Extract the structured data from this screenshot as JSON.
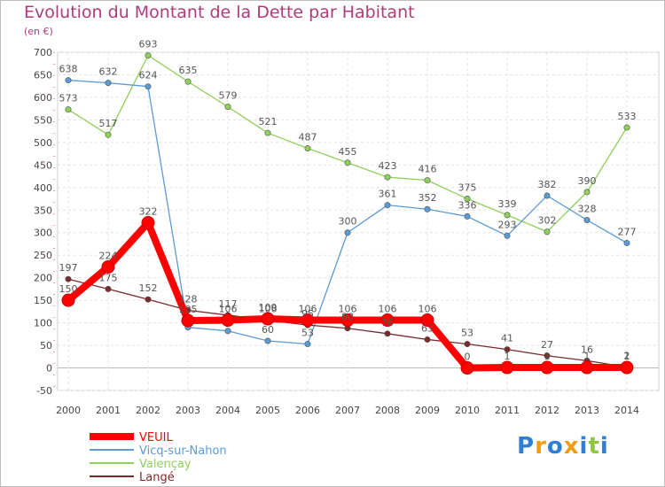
{
  "chart_data": {
    "type": "line",
    "title": "Evolution du Montant de la Dette par Habitant",
    "subtitle": "(en €)",
    "xlabel": "",
    "ylabel": "",
    "ylim": [
      -50,
      700
    ],
    "yticks": [
      -50,
      0,
      50,
      100,
      150,
      200,
      250,
      300,
      350,
      400,
      450,
      500,
      550,
      600,
      650,
      700
    ],
    "x": [
      "2000",
      "2001",
      "2002",
      "2003",
      "2004",
      "2005",
      "2006",
      "2007",
      "2008",
      "2009",
      "2010",
      "2011",
      "2012",
      "2013",
      "2014"
    ],
    "grid": true,
    "legend_position": "bottom-left",
    "series": [
      {
        "name": "Valençay",
        "color": "#8ed05a",
        "values": [
          573,
          517,
          693,
          635,
          579,
          521,
          487,
          455,
          423,
          416,
          375,
          339,
          302,
          390,
          533
        ]
      },
      {
        "name": "Vicq-sur-Nahon",
        "color": "#5b9bd5",
        "values": [
          638,
          632,
          624,
          90,
          82,
          60,
          53,
          300,
          361,
          352,
          336,
          293,
          382,
          328,
          277
        ]
      },
      {
        "name": "Langé",
        "color": "#7a2a2a",
        "values": [
          197,
          175,
          152,
          128,
          117,
          106,
          95,
          88,
          76,
          63,
          53,
          41,
          27,
          16,
          2
        ]
      },
      {
        "name": "VEUIL",
        "color": "#ff0000",
        "values": [
          150,
          224,
          322,
          105,
          106,
          109,
          106,
          106,
          106,
          106,
          0,
          1,
          1,
          1,
          1
        ]
      }
    ],
    "data_labels": {
      "Valençay": [
        "573",
        "517",
        "693",
        "635",
        "579",
        "521",
        "487",
        "455",
        "423",
        "416",
        "375",
        "339",
        "302",
        "390",
        "533"
      ],
      "Vicq-sur-Nahon": [
        "638",
        "632",
        "624",
        "",
        "",
        "60",
        "53",
        "300",
        "361",
        "352",
        "336",
        "293",
        "382",
        "328",
        "277"
      ],
      "Langé": [
        "197",
        "175",
        "152",
        "128",
        "117",
        "106",
        "95",
        "88",
        "76",
        "63",
        "53",
        "41",
        "27",
        "16",
        "2"
      ],
      "VEUIL": [
        "150",
        "224",
        "322",
        "105",
        "106",
        "109",
        "106",
        "106",
        "106",
        "106",
        "0",
        "1",
        "1",
        "1",
        "1"
      ]
    },
    "legend": [
      {
        "name": "VEUIL",
        "color": "#ff0000"
      },
      {
        "name": "Vicq-sur-Nahon",
        "color": "#5b9bd5"
      },
      {
        "name": "Valençay",
        "color": "#8ed05a"
      },
      {
        "name": "Langé",
        "color": "#7a2a2a"
      }
    ]
  },
  "brand": {
    "text": "Proxiti",
    "letters": [
      "P",
      "r",
      "o",
      "x",
      "i",
      "t",
      "i"
    ],
    "colors": [
      "#2f7fd6",
      "#f39c12",
      "#2f7fd6",
      "#f39c12",
      "#2f7fd6",
      "#8ec63f",
      "#2f7fd6"
    ]
  }
}
